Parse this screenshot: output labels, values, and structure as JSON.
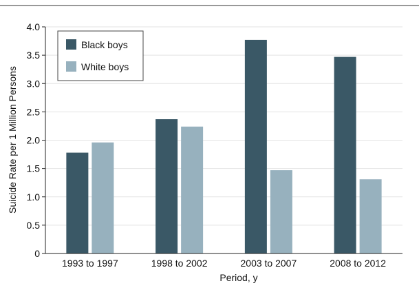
{
  "chart_data": {
    "type": "bar",
    "categories": [
      "1993 to 1997",
      "1998 to 2002",
      "2003 to 2007",
      "2008 to 2012"
    ],
    "series": [
      {
        "name": "Black boys",
        "values": [
          1.78,
          2.37,
          3.77,
          3.47
        ],
        "color": "#3a5866"
      },
      {
        "name": "White boys",
        "values": [
          1.96,
          2.24,
          1.47,
          1.31
        ],
        "color": "#97b1be"
      }
    ],
    "xlabel": "Period, y",
    "ylabel": "Suicide Rate per 1 Million Persons",
    "ylim": [
      0,
      4.0
    ],
    "yticks": [
      "0",
      "0.5",
      "1.0",
      "1.5",
      "2.0",
      "2.5",
      "3.0",
      "3.5",
      "4.0"
    ],
    "legend_position": "top-left",
    "grid": "horizontal"
  }
}
